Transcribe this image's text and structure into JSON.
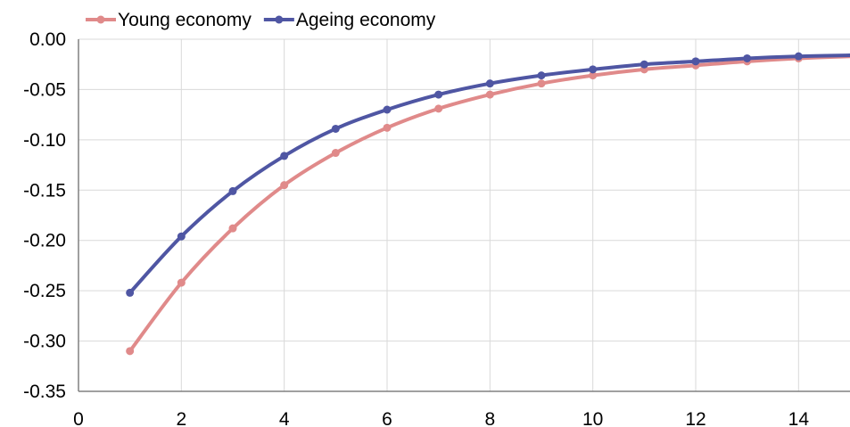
{
  "chart_data": {
    "type": "line",
    "title": "",
    "xlabel": "",
    "ylabel": "",
    "xlim": [
      0,
      15
    ],
    "ylim": [
      -0.35,
      0.0
    ],
    "x_ticks": [
      0,
      2,
      4,
      6,
      8,
      10,
      12,
      14
    ],
    "x_tick_labels": [
      "0",
      "2",
      "4",
      "6",
      "8",
      "10",
      "12",
      "14"
    ],
    "y_ticks": [
      0.0,
      -0.05,
      -0.1,
      -0.15,
      -0.2,
      -0.25,
      -0.3,
      -0.35
    ],
    "y_tick_labels": [
      "0.00",
      "-0.05",
      "-0.10",
      "-0.15",
      "-0.20",
      "-0.25",
      "-0.30",
      "-0.35"
    ],
    "grid": true,
    "legend_position": "top-left",
    "series": [
      {
        "name": "Young economy",
        "color": "#e08a8a",
        "x": [
          1,
          2,
          3,
          4,
          5,
          6,
          7,
          8,
          9,
          10,
          11,
          12,
          13,
          14,
          15
        ],
        "y": [
          -0.31,
          -0.242,
          -0.188,
          -0.145,
          -0.113,
          -0.088,
          -0.069,
          -0.055,
          -0.044,
          -0.036,
          -0.03,
          -0.026,
          -0.022,
          -0.019,
          -0.017
        ]
      },
      {
        "name": "Ageing economy",
        "color": "#4f56a3",
        "x": [
          1,
          2,
          3,
          4,
          5,
          6,
          7,
          8,
          9,
          10,
          11,
          12,
          13,
          14,
          15
        ],
        "y": [
          -0.252,
          -0.196,
          -0.151,
          -0.116,
          -0.089,
          -0.07,
          -0.055,
          -0.044,
          -0.036,
          -0.03,
          -0.025,
          -0.022,
          -0.019,
          -0.017,
          -0.016
        ]
      }
    ]
  }
}
